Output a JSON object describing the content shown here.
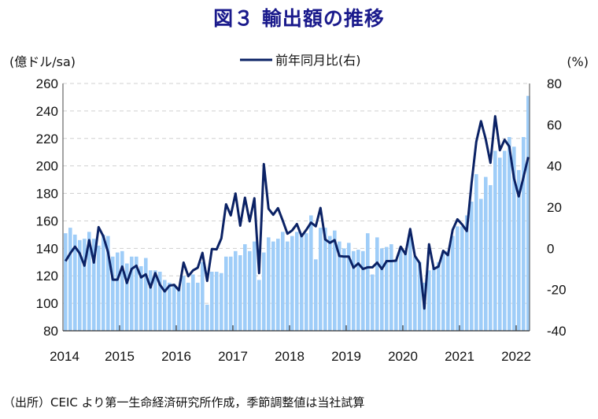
{
  "chart_data": {
    "type": "bar+line",
    "title": "図３ 輸出額の推移",
    "source_note": "（出所）CEIC より第一生命経済研究所作成，季節調整値は当社試算",
    "left_axis_label": "(億ドル/sa)",
    "right_axis_label": "(%)",
    "left_ylim": [
      80,
      260
    ],
    "left_ticks": [
      80,
      100,
      120,
      140,
      160,
      180,
      200,
      220,
      240,
      260
    ],
    "right_ylim": [
      -40,
      80
    ],
    "right_ticks": [
      -40,
      -20,
      0,
      20,
      40,
      60,
      80
    ],
    "negative_tick_color": "#ff0000",
    "x_tick_labels": [
      "2014",
      "2015",
      "2016",
      "2017",
      "2018",
      "2019",
      "2020",
      "2021",
      "2022"
    ],
    "x_start": "2014-01",
    "x_end": "2022-03",
    "grid": "horizontal dashed",
    "legend_position": "top-center",
    "bar_color": "#9fcdf8",
    "line_color": "#0b2265",
    "series": [
      {
        "type": "bar",
        "axis": "left",
        "values": [
          151,
          155,
          150,
          146,
          147,
          152,
          147,
          142,
          150,
          149,
          134,
          137,
          138,
          129,
          134,
          134,
          127,
          133,
          124,
          124,
          123,
          117,
          115,
          114,
          111,
          120,
          115,
          121,
          115,
          130,
          99,
          123,
          123,
          122,
          134,
          134,
          138,
          135,
          143,
          138,
          145,
          117,
          137,
          148,
          145,
          147,
          152,
          145,
          149,
          152,
          151,
          151,
          164,
          132,
          155,
          155,
          149,
          153,
          145,
          140,
          144,
          138,
          139,
          138,
          151,
          121,
          148,
          140,
          141,
          143,
          132,
          141,
          138,
          149,
          134,
          130,
          115,
          124,
          126,
          130,
          138,
          138,
          149,
          156,
          156,
          164,
          174,
          194,
          176,
          192,
          186,
          211,
          206,
          211,
          221,
          214,
          197,
          221,
          251
        ]
      },
      {
        "type": "line",
        "axis": "right",
        "name": "前年同月比(右)",
        "values": [
          -6.2,
          -2.4,
          0.8,
          -2.4,
          -8.4,
          4,
          -6.9,
          10.3,
          5.9,
          -1.8,
          -15.2,
          -15.2,
          -8.8,
          -16.8,
          -10,
          -8.4,
          -14.1,
          -12.6,
          -19,
          -12,
          -17.7,
          -20.9,
          -18.1,
          -17.7,
          -20.3,
          -6.9,
          -13.5,
          -10.7,
          -9.4,
          -2.2,
          -15.8,
          -0.3,
          -0.5,
          4.8,
          21.4,
          16,
          26.6,
          11,
          24.6,
          13.1,
          24.3,
          -12,
          40.9,
          19.2,
          16.3,
          19.5,
          13.5,
          7.1,
          8.7,
          11.8,
          5.9,
          9,
          12.5,
          10.7,
          19.6,
          4.3,
          2.7,
          4,
          -3.7,
          -4,
          -4,
          -9.4,
          -7.3,
          -10,
          -9.2,
          -9.2,
          -6.9,
          -10,
          -6.2,
          -6.2,
          -6,
          0.8,
          -2.8,
          9.4,
          -3.7,
          -7.1,
          -29.2,
          2,
          -10,
          -8.8,
          -1.2,
          -3.3,
          9,
          14.1,
          11.6,
          8.4,
          31.6,
          51.7,
          61.7,
          53,
          41.5,
          64.1,
          47.6,
          52.7,
          49.4,
          33.9,
          25.2,
          34.5,
          44.3
        ]
      }
    ]
  }
}
